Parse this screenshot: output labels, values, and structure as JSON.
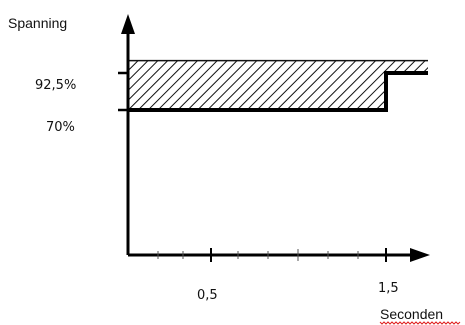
{
  "chart_data": {
    "type": "line",
    "ylabel": "Spanning",
    "xlabel": "Seconden",
    "x_ticks": [
      "0,5",
      "1,5"
    ],
    "y_ticks": [
      "92,5%",
      "70%"
    ],
    "x_range": [
      0,
      1.6
    ],
    "y_range": [
      0,
      112
    ],
    "boundary": {
      "x": [
        0,
        1.5,
        1.5,
        1.6
      ],
      "y": [
        70,
        70,
        92.5,
        92.5
      ]
    },
    "hatched_region": {
      "description": "area above the boundary line",
      "y_top": 100
    },
    "grid": false,
    "legend": "none"
  }
}
